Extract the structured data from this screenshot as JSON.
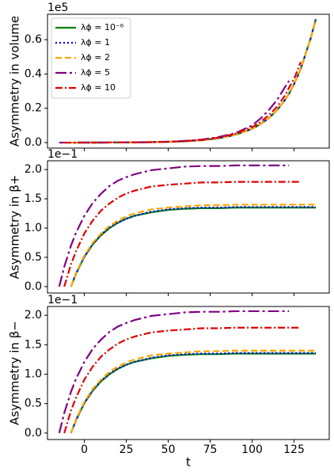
{
  "chart_data": [
    {
      "type": "line",
      "ylabel": "Asymmetry in volume",
      "offset_text": "1e5",
      "xlim": [
        -22,
        146
      ],
      "xticks": [
        0,
        25,
        50,
        75,
        100,
        125
      ],
      "ylim": [
        -0.032,
        0.748
      ],
      "yticks": [
        {
          "value": 0,
          "label": "0.0"
        },
        0.2,
        0.4,
        0.6
      ],
      "legend": "upper left",
      "x": [
        -15,
        -12,
        -8,
        -5,
        0,
        5,
        10,
        15,
        20,
        25,
        30,
        40,
        50,
        60,
        70,
        80,
        90,
        100,
        105,
        110,
        115,
        120,
        122,
        125,
        129,
        135,
        138
      ],
      "series": [
        {
          "name": "λϕ = 10⁻⁶",
          "color": "#008000",
          "linestyle": "solid",
          "values": [
            null,
            null,
            0.0001,
            0.0001,
            0.0002,
            0.0003,
            0.0004,
            0.0006,
            0.0008,
            0.0011,
            0.0014,
            0.0025,
            0.0044,
            0.0079,
            0.014,
            0.025,
            0.045,
            0.08,
            0.107,
            0.143,
            0.19,
            0.254,
            0.285,
            0.34,
            0.43,
            0.61,
            0.72
          ]
        },
        {
          "name": "λϕ = 1",
          "color": "#0000ff",
          "linestyle": "dotted",
          "values": [
            null,
            null,
            0.0001,
            0.0001,
            0.0002,
            0.0003,
            0.0004,
            0.0006,
            0.0008,
            0.0011,
            0.0014,
            0.0025,
            0.0044,
            0.0079,
            0.014,
            0.025,
            0.045,
            0.08,
            0.107,
            0.143,
            0.19,
            0.254,
            0.285,
            0.34,
            0.43,
            0.61,
            0.72
          ]
        },
        {
          "name": "λϕ = 2",
          "color": "#ffa500",
          "linestyle": "dashed",
          "values": [
            null,
            null,
            0.0001,
            0.0001,
            0.0002,
            0.0003,
            0.0004,
            0.0006,
            0.0008,
            0.0011,
            0.0014,
            0.0025,
            0.0044,
            0.0079,
            0.014,
            0.025,
            0.045,
            0.08,
            0.107,
            0.143,
            0.19,
            0.254,
            0.285,
            0.34,
            0.43,
            0.61,
            0.72
          ]
        },
        {
          "name": "λϕ = 5",
          "color": "#800080",
          "linestyle": "longdashdot",
          "values": [
            0.0001,
            0.0001,
            0.0001,
            0.0001,
            0.0002,
            0.0003,
            0.0004,
            0.0006,
            0.0009,
            0.0012,
            0.0016,
            0.003,
            0.0055,
            0.01,
            0.018,
            0.032,
            0.055,
            0.1,
            0.14,
            0.19,
            0.25,
            0.33,
            0.36,
            null,
            null,
            null,
            null
          ]
        },
        {
          "name": "λϕ = 10",
          "color": "#e00000",
          "linestyle": "dashdot",
          "values": [
            null,
            0.0001,
            0.0001,
            0.0001,
            0.0002,
            0.0003,
            0.0004,
            0.0006,
            0.0009,
            0.0012,
            0.0016,
            0.0028,
            0.005,
            0.009,
            0.016,
            0.029,
            0.052,
            0.09,
            0.12,
            0.16,
            0.21,
            0.28,
            0.32,
            0.37,
            0.47,
            null,
            null
          ]
        }
      ]
    },
    {
      "type": "line",
      "ylabel": "Asymmetry in β+",
      "offset_text": "1e−1",
      "xlim": [
        -22,
        146
      ],
      "xticks": [
        0,
        25,
        50,
        75,
        100,
        125
      ],
      "ylim": [
        -0.11,
        2.15
      ],
      "yticks": [
        {
          "value": 0,
          "label": "0.0"
        },
        0.5,
        {
          "value": 1,
          "label": "1.0"
        },
        1.5,
        {
          "value": 2,
          "label": "2.0"
        }
      ],
      "x": [
        -15,
        -12,
        -8,
        -5,
        0,
        5,
        10,
        15,
        20,
        25,
        30,
        40,
        50,
        60,
        70,
        80,
        90,
        100,
        105,
        110,
        115,
        120,
        122,
        125,
        129,
        135,
        138
      ],
      "series": [
        {
          "color": "#008000",
          "linestyle": "solid",
          "values": [
            null,
            null,
            0,
            0.22,
            0.51,
            0.72,
            0.88,
            1.0,
            1.09,
            1.16,
            1.21,
            1.27,
            1.31,
            1.33,
            1.34,
            1.34,
            1.35,
            1.35,
            1.35,
            1.35,
            1.35,
            1.35,
            1.35,
            1.35,
            1.35,
            1.35,
            1.35
          ]
        },
        {
          "color": "#0000ff",
          "linestyle": "dotted",
          "values": [
            null,
            null,
            0,
            0.22,
            0.51,
            0.73,
            0.89,
            1.01,
            1.1,
            1.16,
            1.21,
            1.28,
            1.32,
            1.34,
            1.35,
            1.35,
            1.36,
            1.36,
            1.36,
            1.36,
            1.36,
            1.36,
            1.36,
            1.36,
            1.36,
            1.36,
            1.36
          ]
        },
        {
          "color": "#ffa500",
          "linestyle": "dashed",
          "values": [
            null,
            null,
            0,
            0.23,
            0.53,
            0.75,
            0.91,
            1.04,
            1.13,
            1.2,
            1.25,
            1.32,
            1.35,
            1.37,
            1.39,
            1.39,
            1.4,
            1.4,
            1.4,
            1.4,
            1.4,
            1.4,
            1.4,
            1.4,
            1.4,
            1.4,
            1.4
          ]
        },
        {
          "color": "#800080",
          "linestyle": "longdashdot",
          "values": [
            0,
            0.34,
            0.7,
            0.92,
            1.21,
            1.43,
            1.59,
            1.72,
            1.81,
            1.87,
            1.92,
            1.99,
            2.02,
            2.05,
            2.06,
            2.06,
            2.07,
            2.07,
            2.07,
            2.07,
            2.07,
            2.07,
            2.07,
            null,
            null,
            null,
            null
          ]
        },
        {
          "color": "#e00000",
          "linestyle": "dashdot",
          "values": [
            null,
            0,
            0.38,
            0.6,
            0.91,
            1.13,
            1.3,
            1.42,
            1.52,
            1.59,
            1.64,
            1.71,
            1.74,
            1.76,
            1.78,
            1.78,
            1.79,
            1.79,
            1.79,
            1.79,
            1.79,
            1.79,
            1.79,
            1.79,
            1.79,
            null,
            null
          ]
        }
      ]
    },
    {
      "type": "line",
      "ylabel": "Asymmetry in β−",
      "offset_text": "1e−1",
      "xlabel": "t",
      "xlim": [
        -22,
        146
      ],
      "xticks": [
        0,
        25,
        50,
        75,
        100,
        125
      ],
      "ylim": [
        -0.11,
        2.15
      ],
      "yticks": [
        {
          "value": 0,
          "label": "0.0"
        },
        0.5,
        {
          "value": 1,
          "label": "1.0"
        },
        1.5,
        {
          "value": 2,
          "label": "2.0"
        }
      ],
      "x": [
        -15,
        -12,
        -8,
        -5,
        0,
        5,
        10,
        15,
        20,
        25,
        30,
        40,
        50,
        60,
        70,
        80,
        90,
        100,
        105,
        110,
        115,
        120,
        122,
        125,
        129,
        135,
        138
      ],
      "series": [
        {
          "color": "#008000",
          "linestyle": "solid",
          "values": [
            null,
            null,
            0,
            0.22,
            0.51,
            0.72,
            0.88,
            1.0,
            1.09,
            1.16,
            1.21,
            1.27,
            1.31,
            1.33,
            1.34,
            1.34,
            1.35,
            1.35,
            1.35,
            1.35,
            1.35,
            1.35,
            1.35,
            1.35,
            1.35,
            1.35,
            1.35
          ]
        },
        {
          "color": "#0000ff",
          "linestyle": "dotted",
          "values": [
            null,
            null,
            0,
            0.22,
            0.51,
            0.73,
            0.89,
            1.01,
            1.1,
            1.16,
            1.21,
            1.28,
            1.32,
            1.34,
            1.35,
            1.35,
            1.36,
            1.36,
            1.36,
            1.36,
            1.36,
            1.36,
            1.36,
            1.36,
            1.36,
            1.36,
            1.36
          ]
        },
        {
          "color": "#ffa500",
          "linestyle": "dashed",
          "values": [
            null,
            null,
            0,
            0.23,
            0.53,
            0.75,
            0.91,
            1.04,
            1.13,
            1.2,
            1.25,
            1.32,
            1.35,
            1.37,
            1.39,
            1.39,
            1.4,
            1.4,
            1.4,
            1.4,
            1.4,
            1.4,
            1.4,
            1.4,
            1.4,
            1.4,
            1.4
          ]
        },
        {
          "color": "#800080",
          "linestyle": "longdashdot",
          "values": [
            0,
            0.34,
            0.7,
            0.92,
            1.21,
            1.43,
            1.59,
            1.72,
            1.81,
            1.87,
            1.92,
            1.99,
            2.02,
            2.05,
            2.06,
            2.06,
            2.07,
            2.07,
            2.07,
            2.07,
            2.07,
            2.07,
            2.07,
            null,
            null,
            null,
            null
          ]
        },
        {
          "color": "#e00000",
          "linestyle": "dashdot",
          "values": [
            null,
            0,
            0.38,
            0.6,
            0.91,
            1.13,
            1.3,
            1.42,
            1.52,
            1.59,
            1.64,
            1.71,
            1.74,
            1.76,
            1.78,
            1.78,
            1.79,
            1.79,
            1.79,
            1.79,
            1.79,
            1.79,
            1.79,
            1.79,
            1.79,
            null,
            null
          ]
        }
      ]
    }
  ]
}
